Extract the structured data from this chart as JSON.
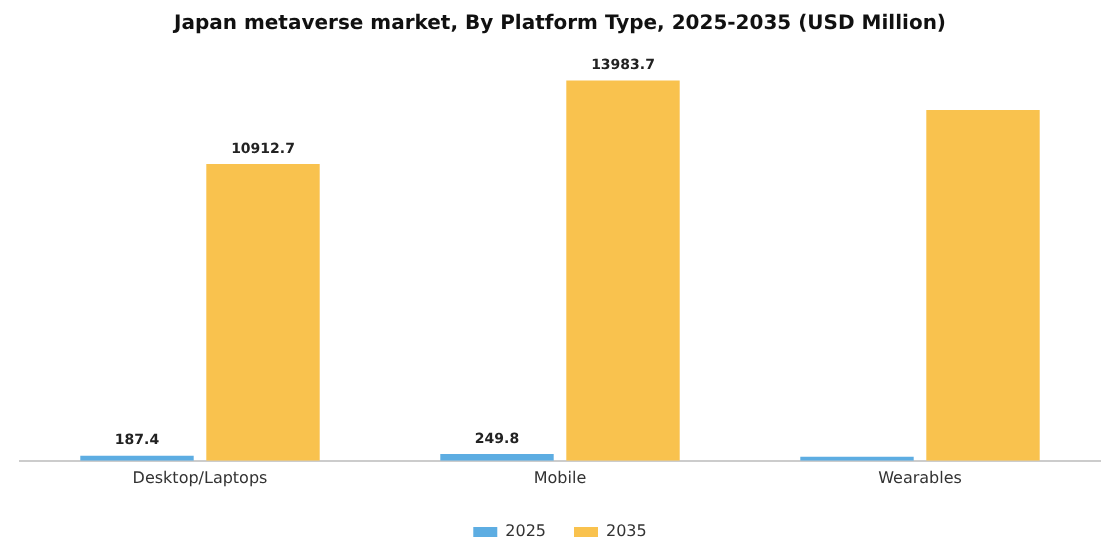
{
  "chart_data": {
    "type": "bar",
    "title": "Japan metaverse market, By Platform Type, 2025-2035 (USD Million)",
    "categories": [
      "Desktop/Laptops",
      "Mobile",
      "Wearables"
    ],
    "series": [
      {
        "name": "2025",
        "color": "#5dade2",
        "values": [
          187.4,
          249.8,
          150
        ],
        "value_labels": [
          "187.4",
          "249.8",
          null
        ]
      },
      {
        "name": "2035",
        "color": "#f9c24e",
        "values": [
          10912.7,
          13983.7,
          12900
        ],
        "value_labels": [
          "10912.7",
          "13983.7",
          null
        ]
      }
    ],
    "legend": "bottom",
    "grid": false
  }
}
